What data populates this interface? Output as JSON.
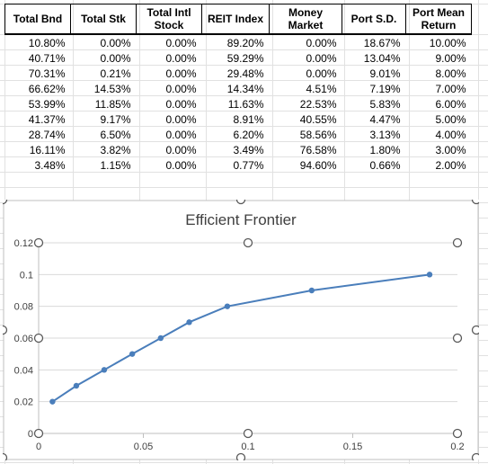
{
  "table": {
    "headers": [
      [
        "Total Bnd"
      ],
      [
        "Total Stk"
      ],
      [
        "Total Intl",
        "Stock"
      ],
      [
        "REIT Index"
      ],
      [
        "Money",
        "Market"
      ],
      [
        "Port S.D."
      ],
      [
        "Port Mean",
        "Return"
      ]
    ],
    "rows": [
      [
        "10.80%",
        "0.00%",
        "0.00%",
        "89.20%",
        "0.00%",
        "18.67%",
        "10.00%"
      ],
      [
        "40.71%",
        "0.00%",
        "0.00%",
        "59.29%",
        "0.00%",
        "13.04%",
        "9.00%"
      ],
      [
        "70.31%",
        "0.21%",
        "0.00%",
        "29.48%",
        "0.00%",
        "9.01%",
        "8.00%"
      ],
      [
        "66.62%",
        "14.53%",
        "0.00%",
        "14.34%",
        "4.51%",
        "7.19%",
        "7.00%"
      ],
      [
        "53.99%",
        "11.85%",
        "0.00%",
        "11.63%",
        "22.53%",
        "5.83%",
        "6.00%"
      ],
      [
        "41.37%",
        "9.17%",
        "0.00%",
        "8.91%",
        "40.55%",
        "4.47%",
        "5.00%"
      ],
      [
        "28.74%",
        "6.50%",
        "0.00%",
        "6.20%",
        "58.56%",
        "3.13%",
        "4.00%"
      ],
      [
        "16.11%",
        "3.82%",
        "0.00%",
        "3.49%",
        "76.58%",
        "1.80%",
        "3.00%"
      ],
      [
        "3.48%",
        "1.15%",
        "0.00%",
        "0.77%",
        "94.60%",
        "0.66%",
        "2.00%"
      ]
    ]
  },
  "chart_data": {
    "type": "scatter",
    "title": "Efficient Frontier",
    "xlabel": "",
    "ylabel": "",
    "xlim": [
      0,
      0.2
    ],
    "ylim": [
      0,
      0.12
    ],
    "xticks": [
      "0",
      "0.05",
      "0.1",
      "0.15",
      "0.2"
    ],
    "yticks": [
      "0",
      "0.02",
      "0.04",
      "0.06",
      "0.08",
      "0.1",
      "0.12"
    ],
    "grid": "horizontal",
    "legend": "none",
    "series": [
      {
        "x": [
          0.0066,
          0.018,
          0.0313,
          0.0447,
          0.0583,
          0.0719,
          0.0901,
          0.1304,
          0.1867
        ],
        "y": [
          0.02,
          0.03,
          0.04,
          0.05,
          0.06,
          0.07,
          0.08,
          0.09,
          0.1
        ]
      }
    ],
    "colors": {
      "series": "#4a7ebb",
      "axis": "#bfbfbf",
      "grid": "#d9d9d9",
      "handles": "#595959"
    }
  }
}
